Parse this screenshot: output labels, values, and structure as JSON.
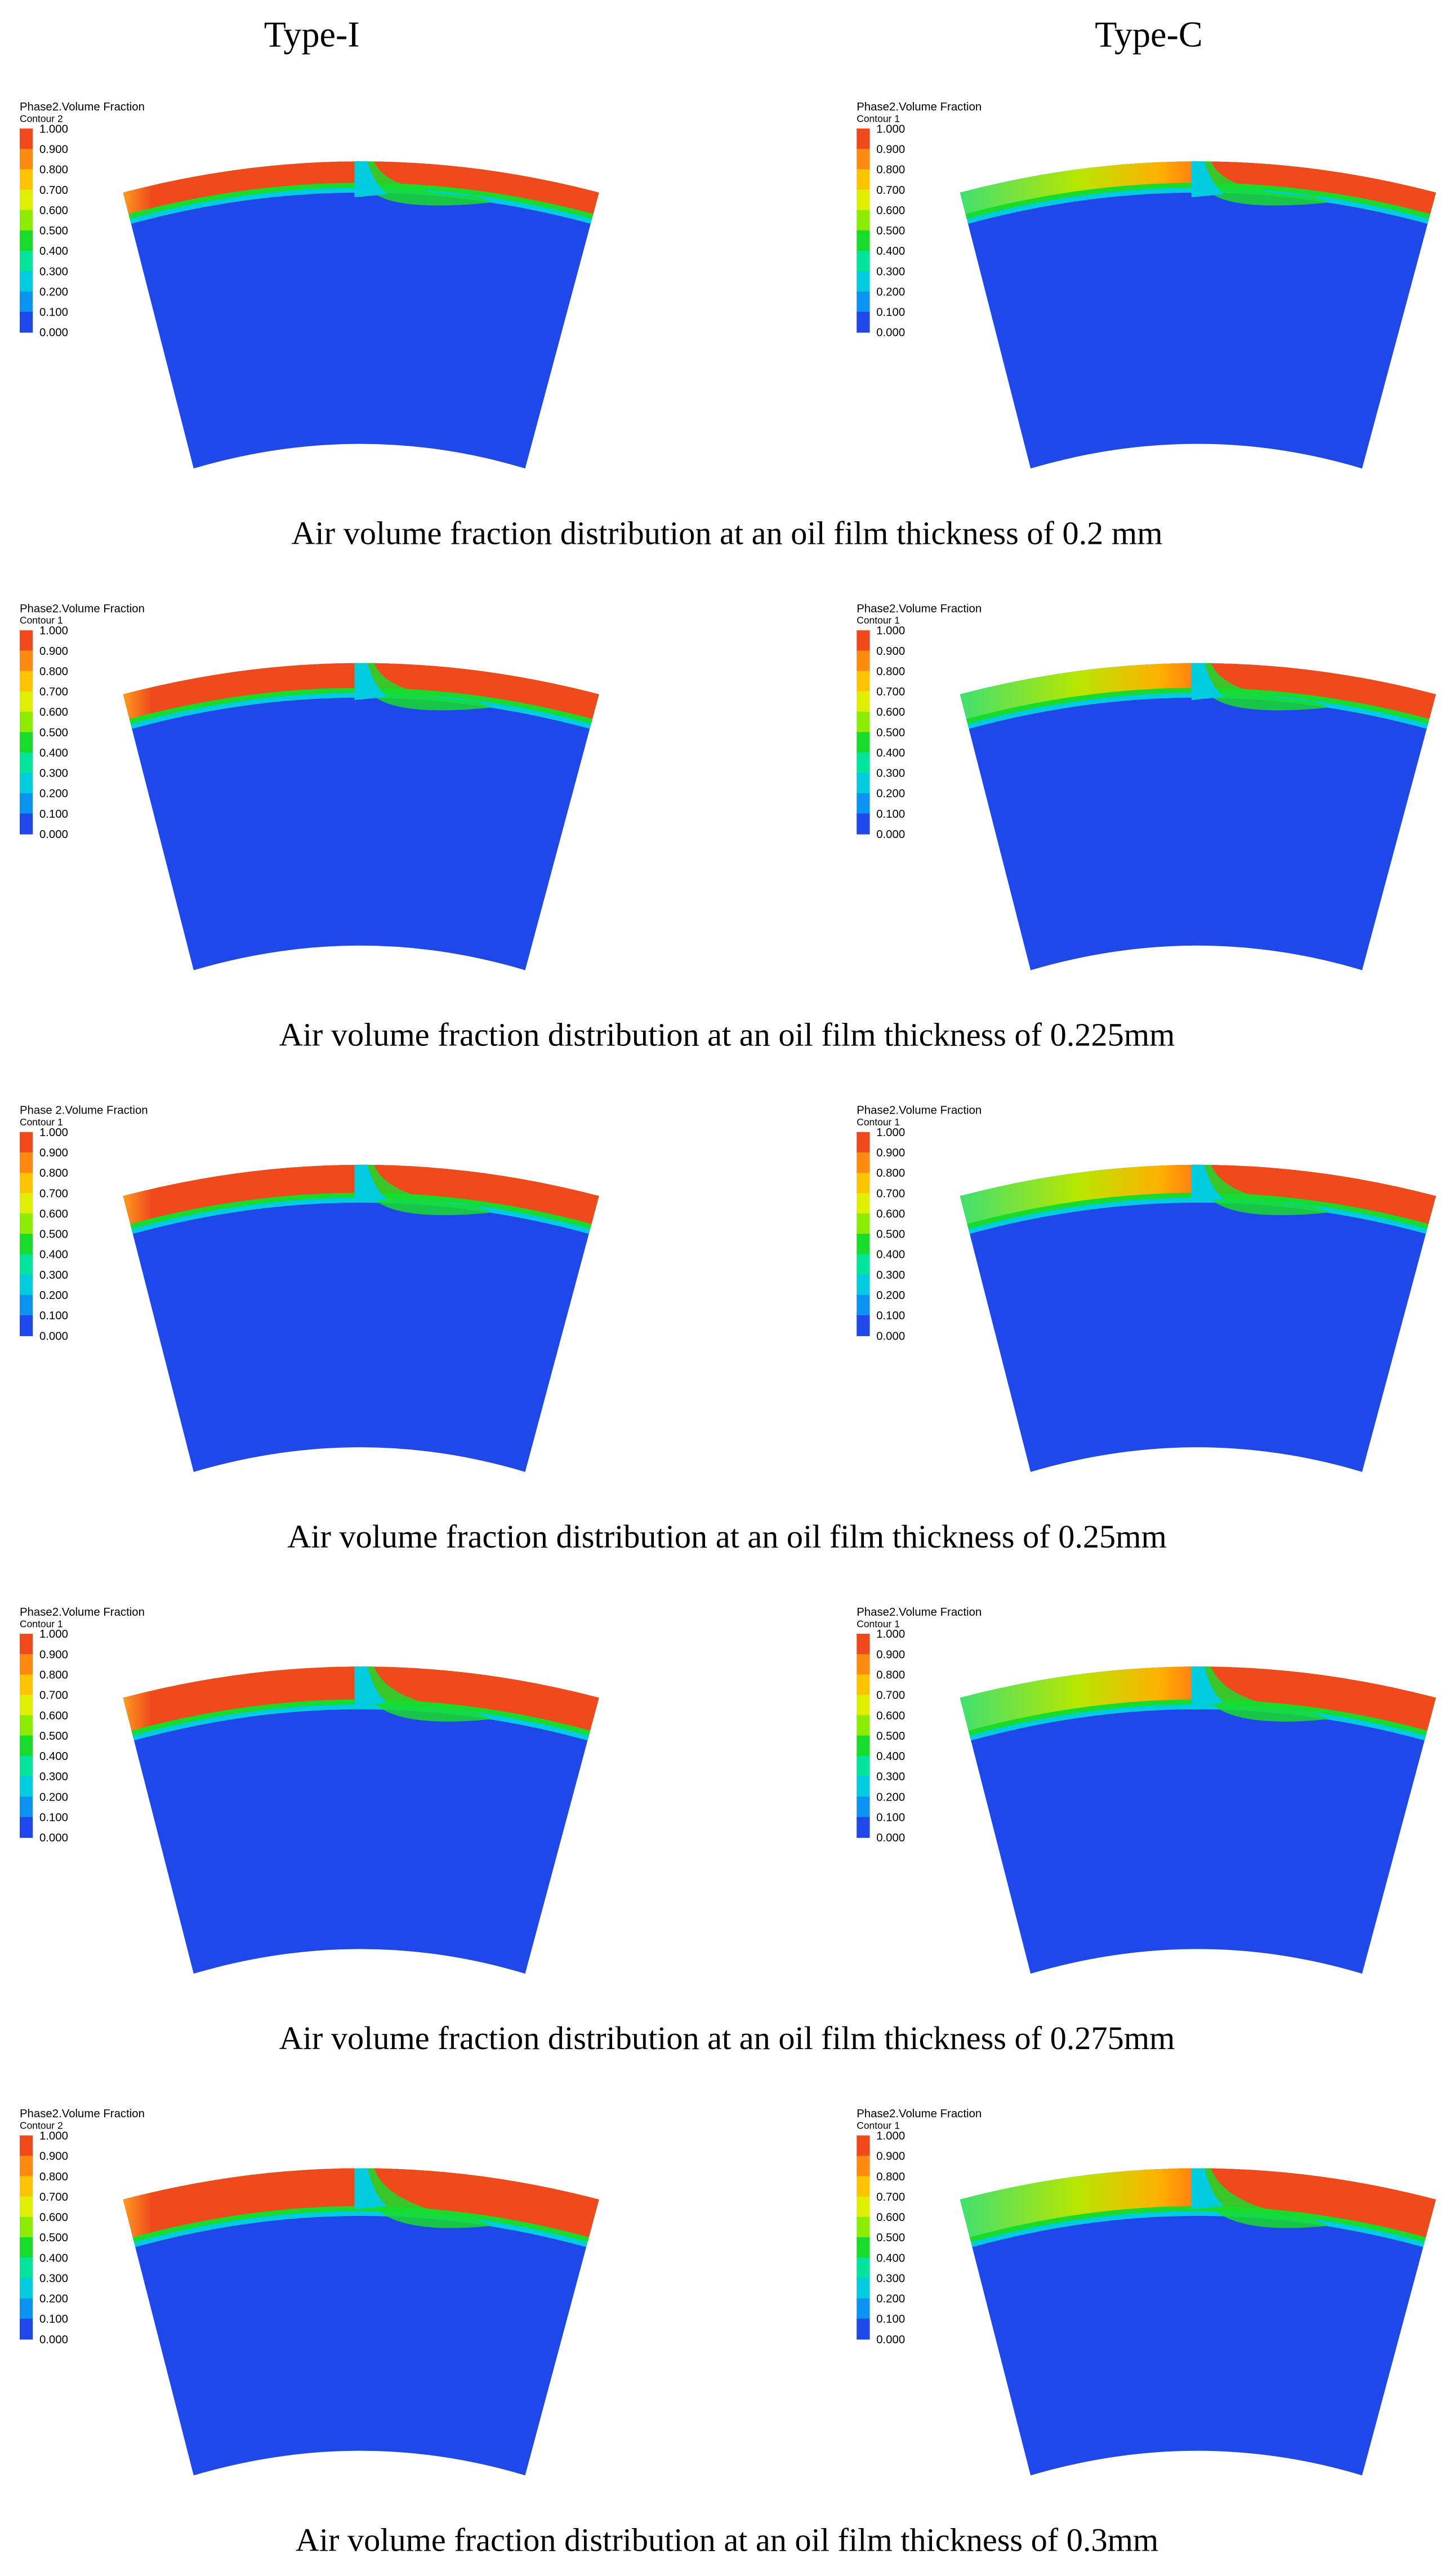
{
  "columns": [
    "Type-I",
    "Type-C"
  ],
  "legend_labels": [
    "1.000",
    "0.900",
    "0.800",
    "0.700",
    "0.600",
    "0.500",
    "0.400",
    "0.300",
    "0.200",
    "0.100",
    "0.000"
  ],
  "legend_colors": [
    "#f04a1c",
    "#ff8a10",
    "#ffc400",
    "#e0ee00",
    "#8cec00",
    "#18dc2c",
    "#00e49c",
    "#00cce0",
    "#0a94f0",
    "#1f48ea"
  ],
  "rows": [
    {
      "caption": "Air volume fraction distribution at an oil film thickness of 0.2 mm",
      "panels": [
        {
          "legend_title": "Phase2.Volume Fraction",
          "legend_subtitle": "Contour 2"
        },
        {
          "legend_title": "Phase2.Volume Fraction",
          "legend_subtitle": "Contour 1"
        }
      ]
    },
    {
      "caption": "Air volume fraction distribution at an oil film thickness of 0.225mm",
      "panels": [
        {
          "legend_title": "Phase2.Volume Fraction",
          "legend_subtitle": "Contour 1"
        },
        {
          "legend_title": "Phase2.Volume Fraction",
          "legend_subtitle": "Contour 1"
        }
      ]
    },
    {
      "caption": "Air volume fraction distribution at an oil film thickness of 0.25mm",
      "panels": [
        {
          "legend_title": "Phase 2.Volume Fraction",
          "legend_subtitle": "Contour 1"
        },
        {
          "legend_title": "Phase2.Volume Fraction",
          "legend_subtitle": "Contour 1"
        }
      ]
    },
    {
      "caption": "Air volume fraction distribution at an oil film thickness of 0.275mm",
      "panels": [
        {
          "legend_title": "Phase2.Volume Fraction",
          "legend_subtitle": "Contour 1"
        },
        {
          "legend_title": "Phase2.Volume Fraction",
          "legend_subtitle": "Contour 1"
        }
      ]
    },
    {
      "caption": "Air volume fraction distribution at an oil film thickness of 0.3mm",
      "panels": [
        {
          "legend_title": "Phase2.Volume Fraction",
          "legend_subtitle": "Contour 2"
        },
        {
          "legend_title": "Phase2.Volume Fraction",
          "legend_subtitle": "Contour 1"
        }
      ]
    }
  ]
}
